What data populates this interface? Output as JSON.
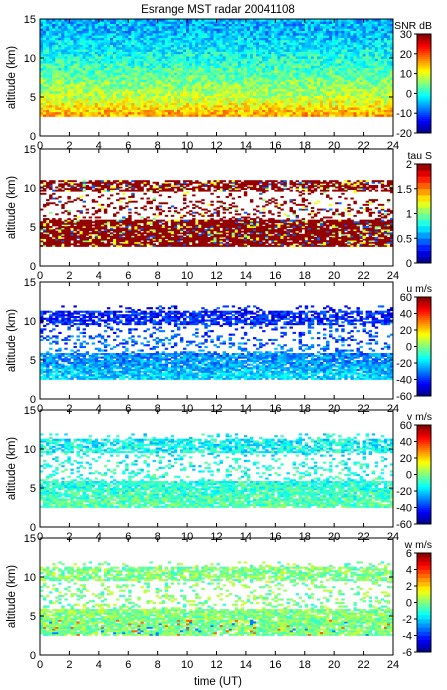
{
  "figure": {
    "title": "Esrange MST radar 20041108",
    "xlabel": "time (UT)"
  },
  "chart_data": [
    {
      "type": "heatmap",
      "quantity": "SNR",
      "colorbar_label": "SNR dB",
      "ylabel": "altitude (km)",
      "xlim": [
        0,
        24
      ],
      "ylim": [
        0,
        15
      ],
      "x_ticks": [
        0,
        2,
        4,
        6,
        8,
        10,
        12,
        14,
        16,
        18,
        20,
        22,
        24
      ],
      "y_ticks": [
        0,
        5,
        10,
        15
      ],
      "clim": [
        -20,
        30
      ],
      "colorbar_ticks": [
        -20,
        -10,
        0,
        10,
        20,
        30
      ],
      "data_altitude_range": [
        2.5,
        15
      ],
      "structure": [
        {
          "altitude": 3,
          "level": 15
        },
        {
          "altitude": 5,
          "level": 8
        },
        {
          "altitude": 7.5,
          "level": 4
        },
        {
          "altitude": 10,
          "level": 0
        },
        {
          "altitude": 13.5,
          "level": -5
        }
      ]
    },
    {
      "type": "heatmap",
      "quantity": "tau",
      "colorbar_label": "tau S",
      "ylabel": "altitude (km)",
      "xlim": [
        0,
        24
      ],
      "ylim": [
        0,
        15
      ],
      "x_ticks": [
        0,
        2,
        4,
        6,
        8,
        10,
        12,
        14,
        16,
        18,
        20,
        22,
        24
      ],
      "y_ticks": [
        0,
        5,
        10,
        15
      ],
      "clim": [
        0,
        2
      ],
      "colorbar_ticks": [
        0,
        0.5,
        1,
        1.5,
        2
      ],
      "data_altitude_range": [
        2.5,
        11
      ],
      "structure": [
        {
          "altitude": 3.5,
          "level": 2
        },
        {
          "altitude": 6,
          "level": 2
        },
        {
          "altitude": 8,
          "level": 2
        },
        {
          "altitude": 10.5,
          "level": 2
        }
      ]
    },
    {
      "type": "heatmap",
      "quantity": "u",
      "colorbar_label": "u m/s",
      "ylabel": "altitude (km)",
      "xlim": [
        0,
        24
      ],
      "ylim": [
        0,
        15
      ],
      "x_ticks": [
        0,
        2,
        4,
        6,
        8,
        10,
        12,
        14,
        16,
        18,
        20,
        22,
        24
      ],
      "y_ticks": [
        0,
        5,
        10,
        15
      ],
      "clim": [
        -60,
        60
      ],
      "colorbar_ticks": [
        -60,
        -40,
        -20,
        0,
        20,
        40,
        60
      ],
      "data_altitude_range": [
        2.5,
        12
      ],
      "structure": [
        {
          "altitude": 3,
          "level": -20
        },
        {
          "altitude": 5,
          "level": -28
        },
        {
          "altitude": 8,
          "level": -35
        },
        {
          "altitude": 10.5,
          "level": -42
        }
      ]
    },
    {
      "type": "heatmap",
      "quantity": "v",
      "colorbar_label": "v m/s",
      "ylabel": "altitude (km)",
      "xlim": [
        0,
        24
      ],
      "ylim": [
        0,
        15
      ],
      "x_ticks": [
        0,
        2,
        4,
        6,
        8,
        10,
        12,
        14,
        16,
        18,
        20,
        22,
        24
      ],
      "y_ticks": [
        0,
        5,
        10,
        15
      ],
      "clim": [
        -60,
        60
      ],
      "colorbar_ticks": [
        -60,
        -40,
        -20,
        0,
        20,
        40,
        60
      ],
      "data_altitude_range": [
        2.5,
        12
      ],
      "structure": [
        {
          "altitude": 3,
          "level": -5
        },
        {
          "altitude": 5,
          "level": -10
        },
        {
          "altitude": 8,
          "level": -12
        },
        {
          "altitude": 10.5,
          "level": -15
        }
      ]
    },
    {
      "type": "heatmap",
      "quantity": "w",
      "colorbar_label": "w m/s",
      "ylabel": "altitude (km)",
      "xlim": [
        0,
        24
      ],
      "ylim": [
        0,
        15
      ],
      "x_ticks": [
        0,
        2,
        4,
        6,
        8,
        10,
        12,
        14,
        16,
        18,
        20,
        22,
        24
      ],
      "y_ticks": [
        0,
        5,
        10,
        15
      ],
      "clim": [
        -6,
        6
      ],
      "colorbar_ticks": [
        -6,
        -4,
        -2,
        0,
        2,
        4,
        6
      ],
      "data_altitude_range": [
        2.5,
        12
      ],
      "structure": [
        {
          "altitude": 3,
          "level": 0
        },
        {
          "altitude": 5,
          "level": 0
        },
        {
          "altitude": 8,
          "level": 0
        },
        {
          "altitude": 10.5,
          "level": 0
        }
      ]
    }
  ]
}
